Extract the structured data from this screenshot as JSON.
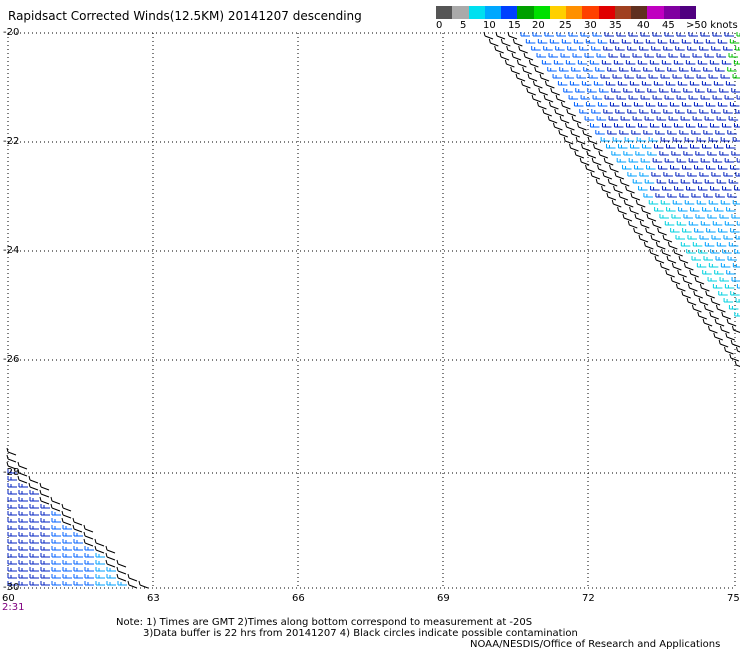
{
  "title": "Rapidsact Corrected Winds(12.5KM) 20141207 descending",
  "colorbar": {
    "colors": [
      "#555555",
      "#aaaaaa",
      "#00e0f0",
      "#00a8ff",
      "#0040ff",
      "#00a000",
      "#00e000",
      "#ffd000",
      "#ff9000",
      "#ff4000",
      "#e00000",
      "#a04020",
      "#603020",
      "#c000c0",
      "#8000a0",
      "#500080"
    ],
    "labels": [
      "0",
      "5",
      "10",
      "15",
      "20",
      "25",
      "30",
      "35",
      "40",
      "45",
      ">50 knots"
    ]
  },
  "lat_labels": [
    "-20",
    "-22",
    "-24",
    "-26",
    "-28",
    "-30"
  ],
  "lon_labels": [
    "60",
    "63",
    "66",
    "69",
    "72",
    "75"
  ],
  "time_label": "2:31",
  "notes": {
    "line1": "Note: 1) Times are GMT 2)Times along bottom correspond to measurement at -20S",
    "line2": "3)Data buffer is 22 hrs from 20141207 4) Black circles indicate possible contamination",
    "line3": "NOAA/NESDIS/Office of Research and Applications"
  },
  "barb_colors": {
    "black": "#000000",
    "dark_blue": "#0020c0",
    "blue": "#0060ff",
    "light_blue": "#00a0ff",
    "cyan": "#00d0e0",
    "green": "#00c000"
  }
}
